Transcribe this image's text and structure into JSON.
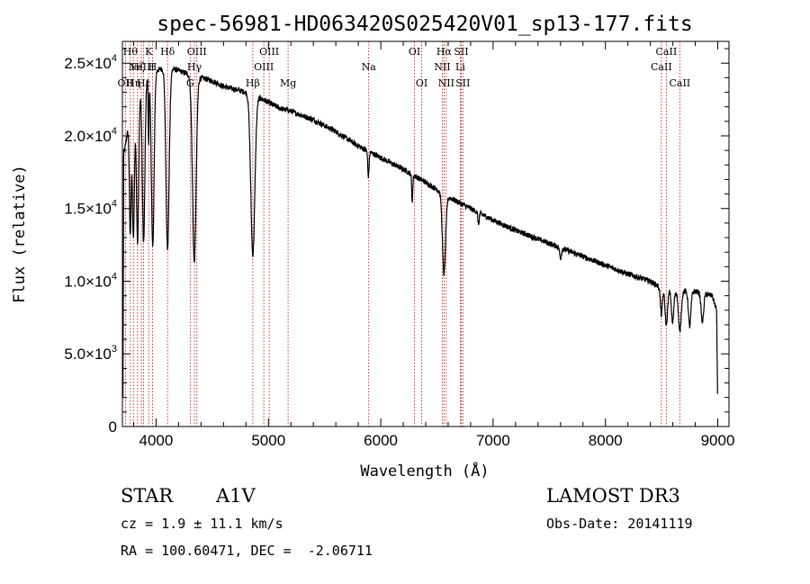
{
  "chart_data": {
    "type": "line",
    "title": "spec-56981-HD063420S025420V01_sp13-177.fits",
    "xlabel": "Wavelength (Å)",
    "ylabel": "Flux (relative)",
    "xlim": [
      3700,
      9100
    ],
    "ylim": [
      0,
      26500
    ],
    "grid": false,
    "xticks": [
      {
        "value": 4000,
        "label": "4000"
      },
      {
        "value": 5000,
        "label": "5000"
      },
      {
        "value": 6000,
        "label": "6000"
      },
      {
        "value": 7000,
        "label": "7000"
      },
      {
        "value": 8000,
        "label": "8000"
      },
      {
        "value": 9000,
        "label": "9000"
      }
    ],
    "yticks": [
      {
        "value": 0,
        "mant": "0",
        "exp": ""
      },
      {
        "value": 5000,
        "mant": "5.0×10",
        "exp": "3"
      },
      {
        "value": 10000,
        "mant": "1.0×10",
        "exp": "4"
      },
      {
        "value": 15000,
        "mant": "1.5×10",
        "exp": "4"
      },
      {
        "value": 20000,
        "mant": "2.0×10",
        "exp": "4"
      },
      {
        "value": 25000,
        "mant": "2.5×10",
        "exp": "4"
      }
    ],
    "continuum": [
      [
        3720,
        19000
      ],
      [
        3760,
        21000
      ],
      [
        3800,
        22000
      ],
      [
        3850,
        23000
      ],
      [
        3900,
        23800
      ],
      [
        3950,
        24200
      ],
      [
        4000,
        24500
      ],
      [
        4100,
        24700
      ],
      [
        4200,
        24500
      ],
      [
        4300,
        24200
      ],
      [
        4400,
        24000
      ],
      [
        4500,
        23800
      ],
      [
        4600,
        23400
      ],
      [
        4700,
        23200
      ],
      [
        4800,
        23000
      ],
      [
        4900,
        22700
      ],
      [
        5000,
        22300
      ],
      [
        5100,
        21900
      ],
      [
        5200,
        21700
      ],
      [
        5400,
        21100
      ],
      [
        5600,
        20300
      ],
      [
        5800,
        19300
      ],
      [
        6000,
        18500
      ],
      [
        6200,
        17700
      ],
      [
        6400,
        16800
      ],
      [
        6600,
        15800
      ],
      [
        6800,
        15000
      ],
      [
        7000,
        14200
      ],
      [
        7200,
        13500
      ],
      [
        7400,
        12900
      ],
      [
        7600,
        12300
      ],
      [
        7800,
        11700
      ],
      [
        8000,
        11100
      ],
      [
        8200,
        10500
      ],
      [
        8400,
        10000
      ],
      [
        8500,
        9500
      ],
      [
        8600,
        9300
      ],
      [
        8800,
        9300
      ],
      [
        8950,
        9000
      ],
      [
        8990,
        8000
      ],
      [
        9000,
        1000
      ]
    ],
    "absorption_features": [
      {
        "center": 3770,
        "depth": 8000,
        "width": 8
      },
      {
        "center": 3798,
        "depth": 9000,
        "width": 9
      },
      {
        "center": 3835,
        "depth": 10000,
        "width": 10
      },
      {
        "center": 3889,
        "depth": 11000,
        "width": 11
      },
      {
        "center": 3933,
        "depth": 4500,
        "width": 4
      },
      {
        "center": 3970,
        "depth": 12000,
        "width": 12
      },
      {
        "center": 4102,
        "depth": 12500,
        "width": 14
      },
      {
        "center": 4340,
        "depth": 12800,
        "width": 16
      },
      {
        "center": 4861,
        "depth": 11000,
        "width": 18
      },
      {
        "center": 5890,
        "depth": 1700,
        "width": 6
      },
      {
        "center": 6280,
        "depth": 1800,
        "width": 5
      },
      {
        "center": 6563,
        "depth": 5500,
        "width": 14
      },
      {
        "center": 6870,
        "depth": 800,
        "width": 6
      },
      {
        "center": 7600,
        "depth": 700,
        "width": 8
      },
      {
        "center": 8498,
        "depth": 1800,
        "width": 9
      },
      {
        "center": 8542,
        "depth": 2400,
        "width": 11
      },
      {
        "center": 8598,
        "depth": 2200,
        "width": 10
      },
      {
        "center": 8662,
        "depth": 2800,
        "width": 12
      },
      {
        "center": 8750,
        "depth": 2400,
        "width": 11
      },
      {
        "center": 8863,
        "depth": 2000,
        "width": 11
      }
    ],
    "line_markers": [
      {
        "wavelength": 3727,
        "label": "OII",
        "row": 2
      },
      {
        "wavelength": 3771,
        "label": "Hθ",
        "row": 0
      },
      {
        "wavelength": 3798,
        "label": "Hη",
        "row": 2
      },
      {
        "wavelength": 3835,
        "label": "Hζ",
        "row": 1
      },
      {
        "wavelength": 3869,
        "label": "NeIII",
        "row": 1
      },
      {
        "wavelength": 3889,
        "label": "Hε",
        "row": 2
      },
      {
        "wavelength": 3934,
        "label": "K",
        "row": 0
      },
      {
        "wavelength": 3969,
        "label": "H",
        "row": 1
      },
      {
        "wavelength": 4102,
        "label": "Hδ",
        "row": 0
      },
      {
        "wavelength": 4304,
        "label": "G",
        "row": 2
      },
      {
        "wavelength": 4341,
        "label": "Hγ",
        "row": 1
      },
      {
        "wavelength": 4363,
        "label": "OIII",
        "row": 0
      },
      {
        "wavelength": 4861,
        "label": "Hβ",
        "row": 2
      },
      {
        "wavelength": 4959,
        "label": "OIII",
        "row": 1
      },
      {
        "wavelength": 5007,
        "label": "OIII",
        "row": 0
      },
      {
        "wavelength": 5175,
        "label": "Mg",
        "row": 2
      },
      {
        "wavelength": 5893,
        "label": "Na",
        "row": 1
      },
      {
        "wavelength": 6300,
        "label": "OI",
        "row": 0
      },
      {
        "wavelength": 6364,
        "label": "OI",
        "row": 2
      },
      {
        "wavelength": 6548,
        "label": "NII",
        "row": 1
      },
      {
        "wavelength": 6563,
        "label": "Hα",
        "row": 0
      },
      {
        "wavelength": 6583,
        "label": "NII",
        "row": 2
      },
      {
        "wavelength": 6708,
        "label": "Li",
        "row": 1
      },
      {
        "wavelength": 6716,
        "label": "SII",
        "row": 0
      },
      {
        "wavelength": 6731,
        "label": "SII",
        "row": 2
      },
      {
        "wavelength": 8498,
        "label": "CaII",
        "row": 1
      },
      {
        "wavelength": 8542,
        "label": "CaII",
        "row": 0
      },
      {
        "wavelength": 8662,
        "label": "CaII",
        "row": 2
      }
    ]
  },
  "info": {
    "object_class": "STAR",
    "subclass": "A1V",
    "survey": "LAMOST DR3",
    "redshift": "cz = 1.9 ± 11.1 km/s",
    "obs_date": "Obs-Date: 20141119",
    "coords": "RA = 100.60471, DEC =  -2.06711"
  },
  "colors": {
    "spectrum": "#000000",
    "marker": "#cc0000",
    "axes": "#000000",
    "background": "#ffffff"
  }
}
